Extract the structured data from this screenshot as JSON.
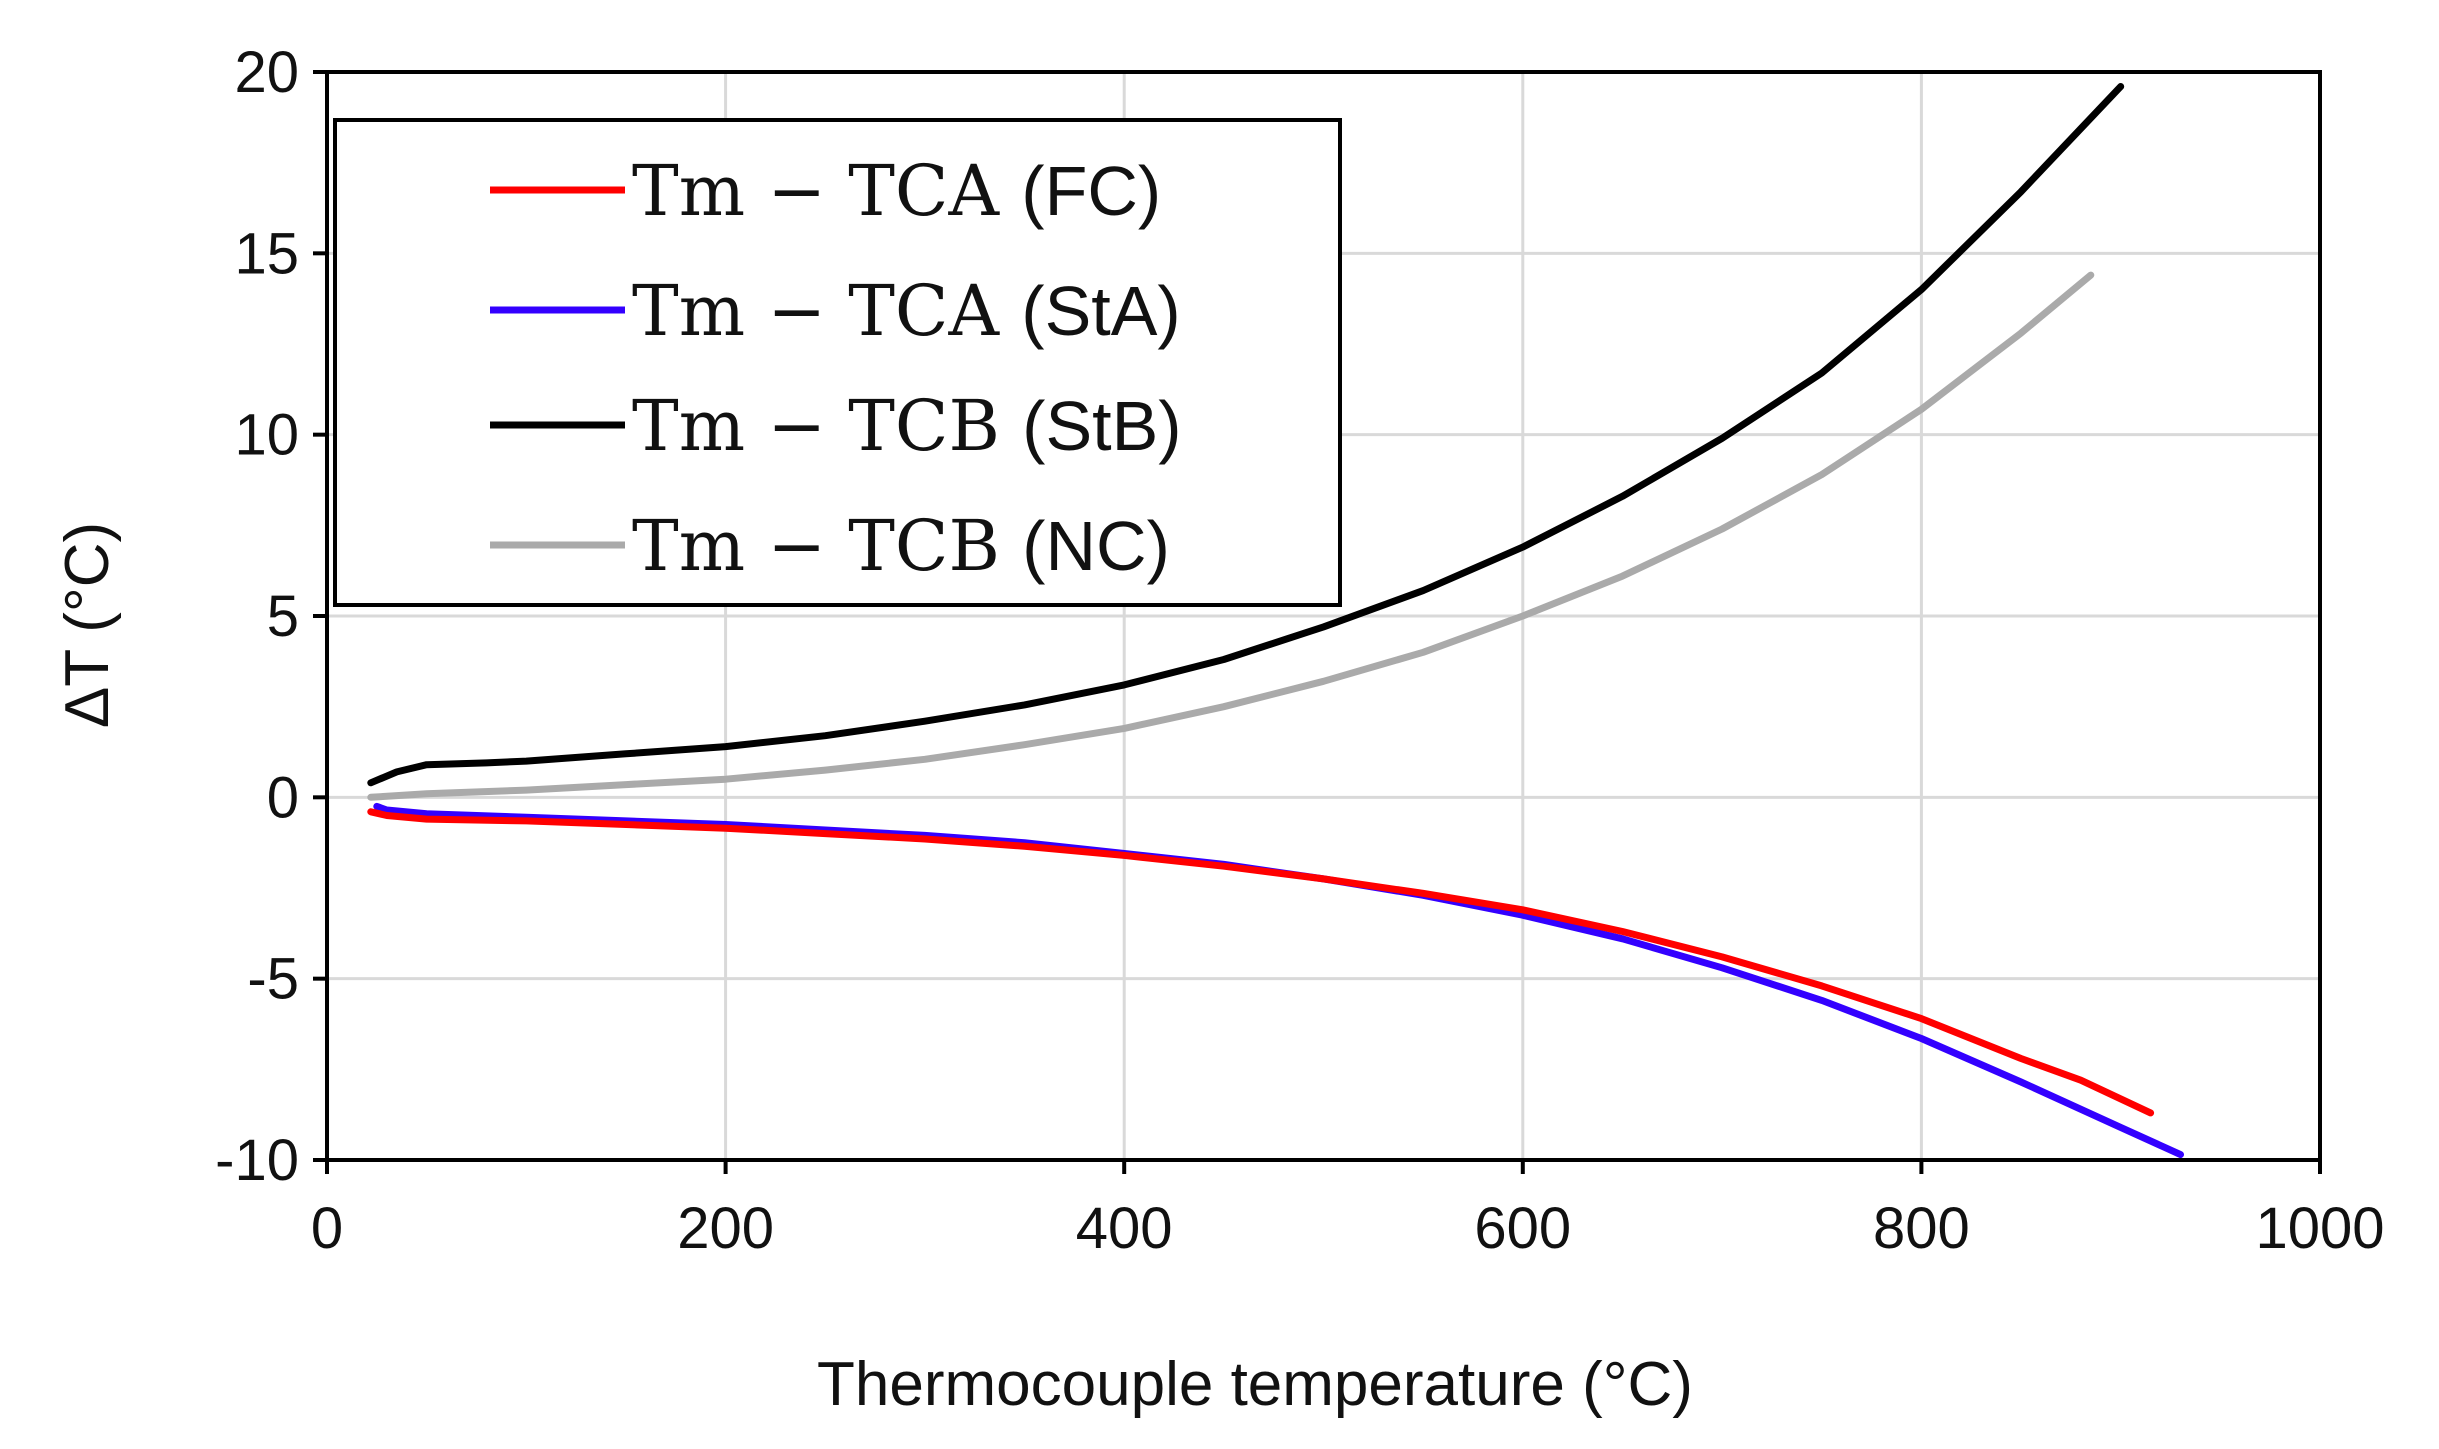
{
  "chart_data": {
    "type": "line",
    "title": "",
    "xlabel": "Thermocouple temperature (°C)",
    "ylabel": "ΔT (°C)",
    "xlim": [
      0,
      1000
    ],
    "ylim": [
      -10,
      20
    ],
    "xticks": [
      0,
      200,
      400,
      600,
      800,
      1000
    ],
    "yticks": [
      -10,
      -5,
      0,
      5,
      10,
      15,
      20
    ],
    "xtick_labels": [
      "0",
      "200",
      "400",
      "600",
      "800",
      "1000"
    ],
    "ytick_labels": [
      "-10",
      "-5",
      "0",
      "5",
      "10",
      "15",
      "20"
    ],
    "grid": true,
    "legend_position": "top-left",
    "series": [
      {
        "name": "Tm − TCA (FC)",
        "label_main": "Tm − TCA",
        "label_paren": "(FC)",
        "color": "#ff0000",
        "x": [
          22,
          30,
          50,
          100,
          150,
          200,
          250,
          300,
          350,
          400,
          450,
          500,
          550,
          600,
          650,
          700,
          750,
          800,
          850,
          880,
          915
        ],
        "y": [
          -0.4,
          -0.5,
          -0.6,
          -0.65,
          -0.75,
          -0.85,
          -1.0,
          -1.15,
          -1.35,
          -1.6,
          -1.9,
          -2.25,
          -2.65,
          -3.1,
          -3.7,
          -4.4,
          -5.2,
          -6.1,
          -7.2,
          -7.8,
          -8.7
        ]
      },
      {
        "name": "Tm − TCA (StA)",
        "label_main": "Tm − TCA",
        "label_paren": "(StA)",
        "color": "#3300ff",
        "x": [
          25,
          30,
          50,
          100,
          150,
          200,
          250,
          300,
          350,
          400,
          450,
          500,
          550,
          600,
          650,
          700,
          750,
          800,
          850,
          900,
          930
        ],
        "y": [
          -0.25,
          -0.35,
          -0.45,
          -0.55,
          -0.65,
          -0.75,
          -0.9,
          -1.05,
          -1.25,
          -1.55,
          -1.85,
          -2.25,
          -2.7,
          -3.25,
          -3.9,
          -4.7,
          -5.6,
          -6.65,
          -7.85,
          -9.1,
          -9.85
        ]
      },
      {
        "name": "Tm − TCB (StB)",
        "label_main": "Tm − TCB",
        "label_paren": "(StB)",
        "color": "#000000",
        "x": [
          22,
          35,
          50,
          80,
          100,
          150,
          200,
          250,
          300,
          350,
          400,
          450,
          500,
          550,
          600,
          650,
          700,
          750,
          800,
          850,
          900
        ],
        "y": [
          0.4,
          0.7,
          0.9,
          0.95,
          1.0,
          1.2,
          1.4,
          1.7,
          2.1,
          2.55,
          3.1,
          3.8,
          4.7,
          5.7,
          6.9,
          8.3,
          9.9,
          11.7,
          14.0,
          16.7,
          19.6
        ]
      },
      {
        "name": "Tm − TCB (NC)",
        "label_main": "Tm − TCB",
        "label_paren": "(NC)",
        "color": "#aaaaaa",
        "x": [
          22,
          50,
          100,
          150,
          200,
          250,
          300,
          350,
          400,
          450,
          500,
          550,
          600,
          650,
          700,
          750,
          800,
          850,
          885
        ],
        "y": [
          0.0,
          0.1,
          0.2,
          0.35,
          0.5,
          0.75,
          1.05,
          1.45,
          1.9,
          2.5,
          3.2,
          4.0,
          5.0,
          6.1,
          7.4,
          8.9,
          10.7,
          12.8,
          14.4
        ]
      }
    ]
  },
  "colors": {
    "axis": "#000000",
    "grid": "#d9d9d9",
    "background": "#ffffff"
  }
}
